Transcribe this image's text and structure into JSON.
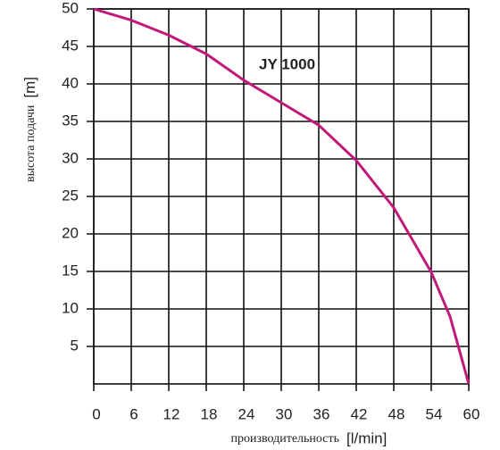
{
  "chart_data": {
    "type": "line",
    "xlabel": "производительность",
    "xunit": "[l/min]",
    "ylabel": "высота подачи",
    "yunit": "[m]",
    "x": [
      0,
      6,
      12,
      18,
      24,
      30,
      36,
      42,
      48,
      54,
      57,
      60
    ],
    "series": [
      {
        "name": "JY 1000",
        "color": "#c2187a",
        "values": [
          50,
          48.5,
          46.5,
          44,
          40.5,
          37.5,
          34.5,
          29.8,
          23.5,
          14.9,
          9,
          0
        ]
      }
    ],
    "xlim": [
      0,
      60
    ],
    "xticks": [
      0,
      6,
      12,
      18,
      24,
      30,
      36,
      42,
      48,
      54,
      60
    ],
    "ylim": [
      0,
      50
    ],
    "yticks": [
      5,
      10,
      15,
      20,
      25,
      30,
      35,
      40,
      45,
      50
    ],
    "grid": true
  }
}
